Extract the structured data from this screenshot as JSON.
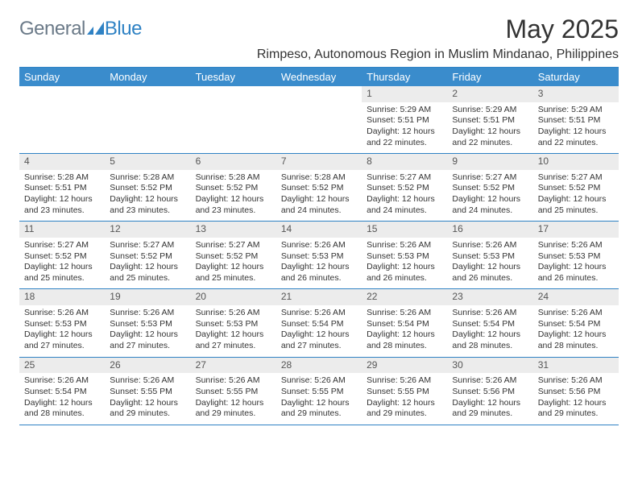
{
  "logo": {
    "general": "General",
    "blue": "Blue"
  },
  "title": "May 2025",
  "location": "Rimpeso, Autonomous Region in Muslim Mindanao, Philippines",
  "colors": {
    "header_bg": "#3a8ccc",
    "header_text": "#ffffff",
    "border": "#2f82c4",
    "daynum_bg": "#ececec",
    "text": "#333333",
    "logo_grey": "#6b7a88",
    "logo_blue": "#2f82c4"
  },
  "day_headers": [
    "Sunday",
    "Monday",
    "Tuesday",
    "Wednesday",
    "Thursday",
    "Friday",
    "Saturday"
  ],
  "weeks": [
    [
      {
        "day": "",
        "sunrise": "",
        "sunset": "",
        "daylight": ""
      },
      {
        "day": "",
        "sunrise": "",
        "sunset": "",
        "daylight": ""
      },
      {
        "day": "",
        "sunrise": "",
        "sunset": "",
        "daylight": ""
      },
      {
        "day": "",
        "sunrise": "",
        "sunset": "",
        "daylight": ""
      },
      {
        "day": "1",
        "sunrise": "Sunrise: 5:29 AM",
        "sunset": "Sunset: 5:51 PM",
        "daylight": "Daylight: 12 hours and 22 minutes."
      },
      {
        "day": "2",
        "sunrise": "Sunrise: 5:29 AM",
        "sunset": "Sunset: 5:51 PM",
        "daylight": "Daylight: 12 hours and 22 minutes."
      },
      {
        "day": "3",
        "sunrise": "Sunrise: 5:29 AM",
        "sunset": "Sunset: 5:51 PM",
        "daylight": "Daylight: 12 hours and 22 minutes."
      }
    ],
    [
      {
        "day": "4",
        "sunrise": "Sunrise: 5:28 AM",
        "sunset": "Sunset: 5:51 PM",
        "daylight": "Daylight: 12 hours and 23 minutes."
      },
      {
        "day": "5",
        "sunrise": "Sunrise: 5:28 AM",
        "sunset": "Sunset: 5:52 PM",
        "daylight": "Daylight: 12 hours and 23 minutes."
      },
      {
        "day": "6",
        "sunrise": "Sunrise: 5:28 AM",
        "sunset": "Sunset: 5:52 PM",
        "daylight": "Daylight: 12 hours and 23 minutes."
      },
      {
        "day": "7",
        "sunrise": "Sunrise: 5:28 AM",
        "sunset": "Sunset: 5:52 PM",
        "daylight": "Daylight: 12 hours and 24 minutes."
      },
      {
        "day": "8",
        "sunrise": "Sunrise: 5:27 AM",
        "sunset": "Sunset: 5:52 PM",
        "daylight": "Daylight: 12 hours and 24 minutes."
      },
      {
        "day": "9",
        "sunrise": "Sunrise: 5:27 AM",
        "sunset": "Sunset: 5:52 PM",
        "daylight": "Daylight: 12 hours and 24 minutes."
      },
      {
        "day": "10",
        "sunrise": "Sunrise: 5:27 AM",
        "sunset": "Sunset: 5:52 PM",
        "daylight": "Daylight: 12 hours and 25 minutes."
      }
    ],
    [
      {
        "day": "11",
        "sunrise": "Sunrise: 5:27 AM",
        "sunset": "Sunset: 5:52 PM",
        "daylight": "Daylight: 12 hours and 25 minutes."
      },
      {
        "day": "12",
        "sunrise": "Sunrise: 5:27 AM",
        "sunset": "Sunset: 5:52 PM",
        "daylight": "Daylight: 12 hours and 25 minutes."
      },
      {
        "day": "13",
        "sunrise": "Sunrise: 5:27 AM",
        "sunset": "Sunset: 5:52 PM",
        "daylight": "Daylight: 12 hours and 25 minutes."
      },
      {
        "day": "14",
        "sunrise": "Sunrise: 5:26 AM",
        "sunset": "Sunset: 5:53 PM",
        "daylight": "Daylight: 12 hours and 26 minutes."
      },
      {
        "day": "15",
        "sunrise": "Sunrise: 5:26 AM",
        "sunset": "Sunset: 5:53 PM",
        "daylight": "Daylight: 12 hours and 26 minutes."
      },
      {
        "day": "16",
        "sunrise": "Sunrise: 5:26 AM",
        "sunset": "Sunset: 5:53 PM",
        "daylight": "Daylight: 12 hours and 26 minutes."
      },
      {
        "day": "17",
        "sunrise": "Sunrise: 5:26 AM",
        "sunset": "Sunset: 5:53 PM",
        "daylight": "Daylight: 12 hours and 26 minutes."
      }
    ],
    [
      {
        "day": "18",
        "sunrise": "Sunrise: 5:26 AM",
        "sunset": "Sunset: 5:53 PM",
        "daylight": "Daylight: 12 hours and 27 minutes."
      },
      {
        "day": "19",
        "sunrise": "Sunrise: 5:26 AM",
        "sunset": "Sunset: 5:53 PM",
        "daylight": "Daylight: 12 hours and 27 minutes."
      },
      {
        "day": "20",
        "sunrise": "Sunrise: 5:26 AM",
        "sunset": "Sunset: 5:53 PM",
        "daylight": "Daylight: 12 hours and 27 minutes."
      },
      {
        "day": "21",
        "sunrise": "Sunrise: 5:26 AM",
        "sunset": "Sunset: 5:54 PM",
        "daylight": "Daylight: 12 hours and 27 minutes."
      },
      {
        "day": "22",
        "sunrise": "Sunrise: 5:26 AM",
        "sunset": "Sunset: 5:54 PM",
        "daylight": "Daylight: 12 hours and 28 minutes."
      },
      {
        "day": "23",
        "sunrise": "Sunrise: 5:26 AM",
        "sunset": "Sunset: 5:54 PM",
        "daylight": "Daylight: 12 hours and 28 minutes."
      },
      {
        "day": "24",
        "sunrise": "Sunrise: 5:26 AM",
        "sunset": "Sunset: 5:54 PM",
        "daylight": "Daylight: 12 hours and 28 minutes."
      }
    ],
    [
      {
        "day": "25",
        "sunrise": "Sunrise: 5:26 AM",
        "sunset": "Sunset: 5:54 PM",
        "daylight": "Daylight: 12 hours and 28 minutes."
      },
      {
        "day": "26",
        "sunrise": "Sunrise: 5:26 AM",
        "sunset": "Sunset: 5:55 PM",
        "daylight": "Daylight: 12 hours and 29 minutes."
      },
      {
        "day": "27",
        "sunrise": "Sunrise: 5:26 AM",
        "sunset": "Sunset: 5:55 PM",
        "daylight": "Daylight: 12 hours and 29 minutes."
      },
      {
        "day": "28",
        "sunrise": "Sunrise: 5:26 AM",
        "sunset": "Sunset: 5:55 PM",
        "daylight": "Daylight: 12 hours and 29 minutes."
      },
      {
        "day": "29",
        "sunrise": "Sunrise: 5:26 AM",
        "sunset": "Sunset: 5:55 PM",
        "daylight": "Daylight: 12 hours and 29 minutes."
      },
      {
        "day": "30",
        "sunrise": "Sunrise: 5:26 AM",
        "sunset": "Sunset: 5:56 PM",
        "daylight": "Daylight: 12 hours and 29 minutes."
      },
      {
        "day": "31",
        "sunrise": "Sunrise: 5:26 AM",
        "sunset": "Sunset: 5:56 PM",
        "daylight": "Daylight: 12 hours and 29 minutes."
      }
    ]
  ]
}
